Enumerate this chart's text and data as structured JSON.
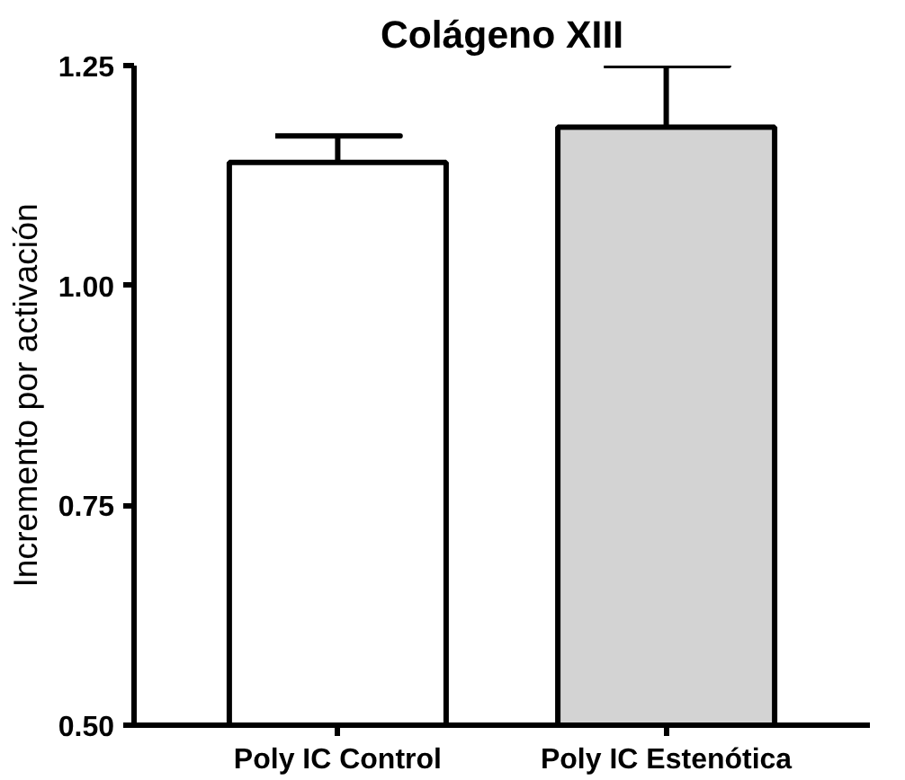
{
  "chart_data": {
    "type": "bar",
    "title": "Colágeno XIII",
    "ylabel": "Incremento por activación",
    "categories": [
      "Poly IC Control",
      "Poly IC Estenótica"
    ],
    "values": [
      1.14,
      1.18
    ],
    "colors": [
      "#ffffff",
      "#d3d3d3"
    ],
    "errors": [
      [
        1.14,
        1.17
      ],
      [
        1.18,
        1.25
      ]
    ],
    "ylim": [
      0.5,
      1.25
    ],
    "yticks": [
      {
        "value": 0.5,
        "label": "0.50"
      },
      {
        "value": 0.75,
        "label": "0.75"
      },
      {
        "value": 1.0,
        "label": "1.00"
      },
      {
        "value": 1.25,
        "label": "1.25"
      }
    ],
    "grid": false
  }
}
